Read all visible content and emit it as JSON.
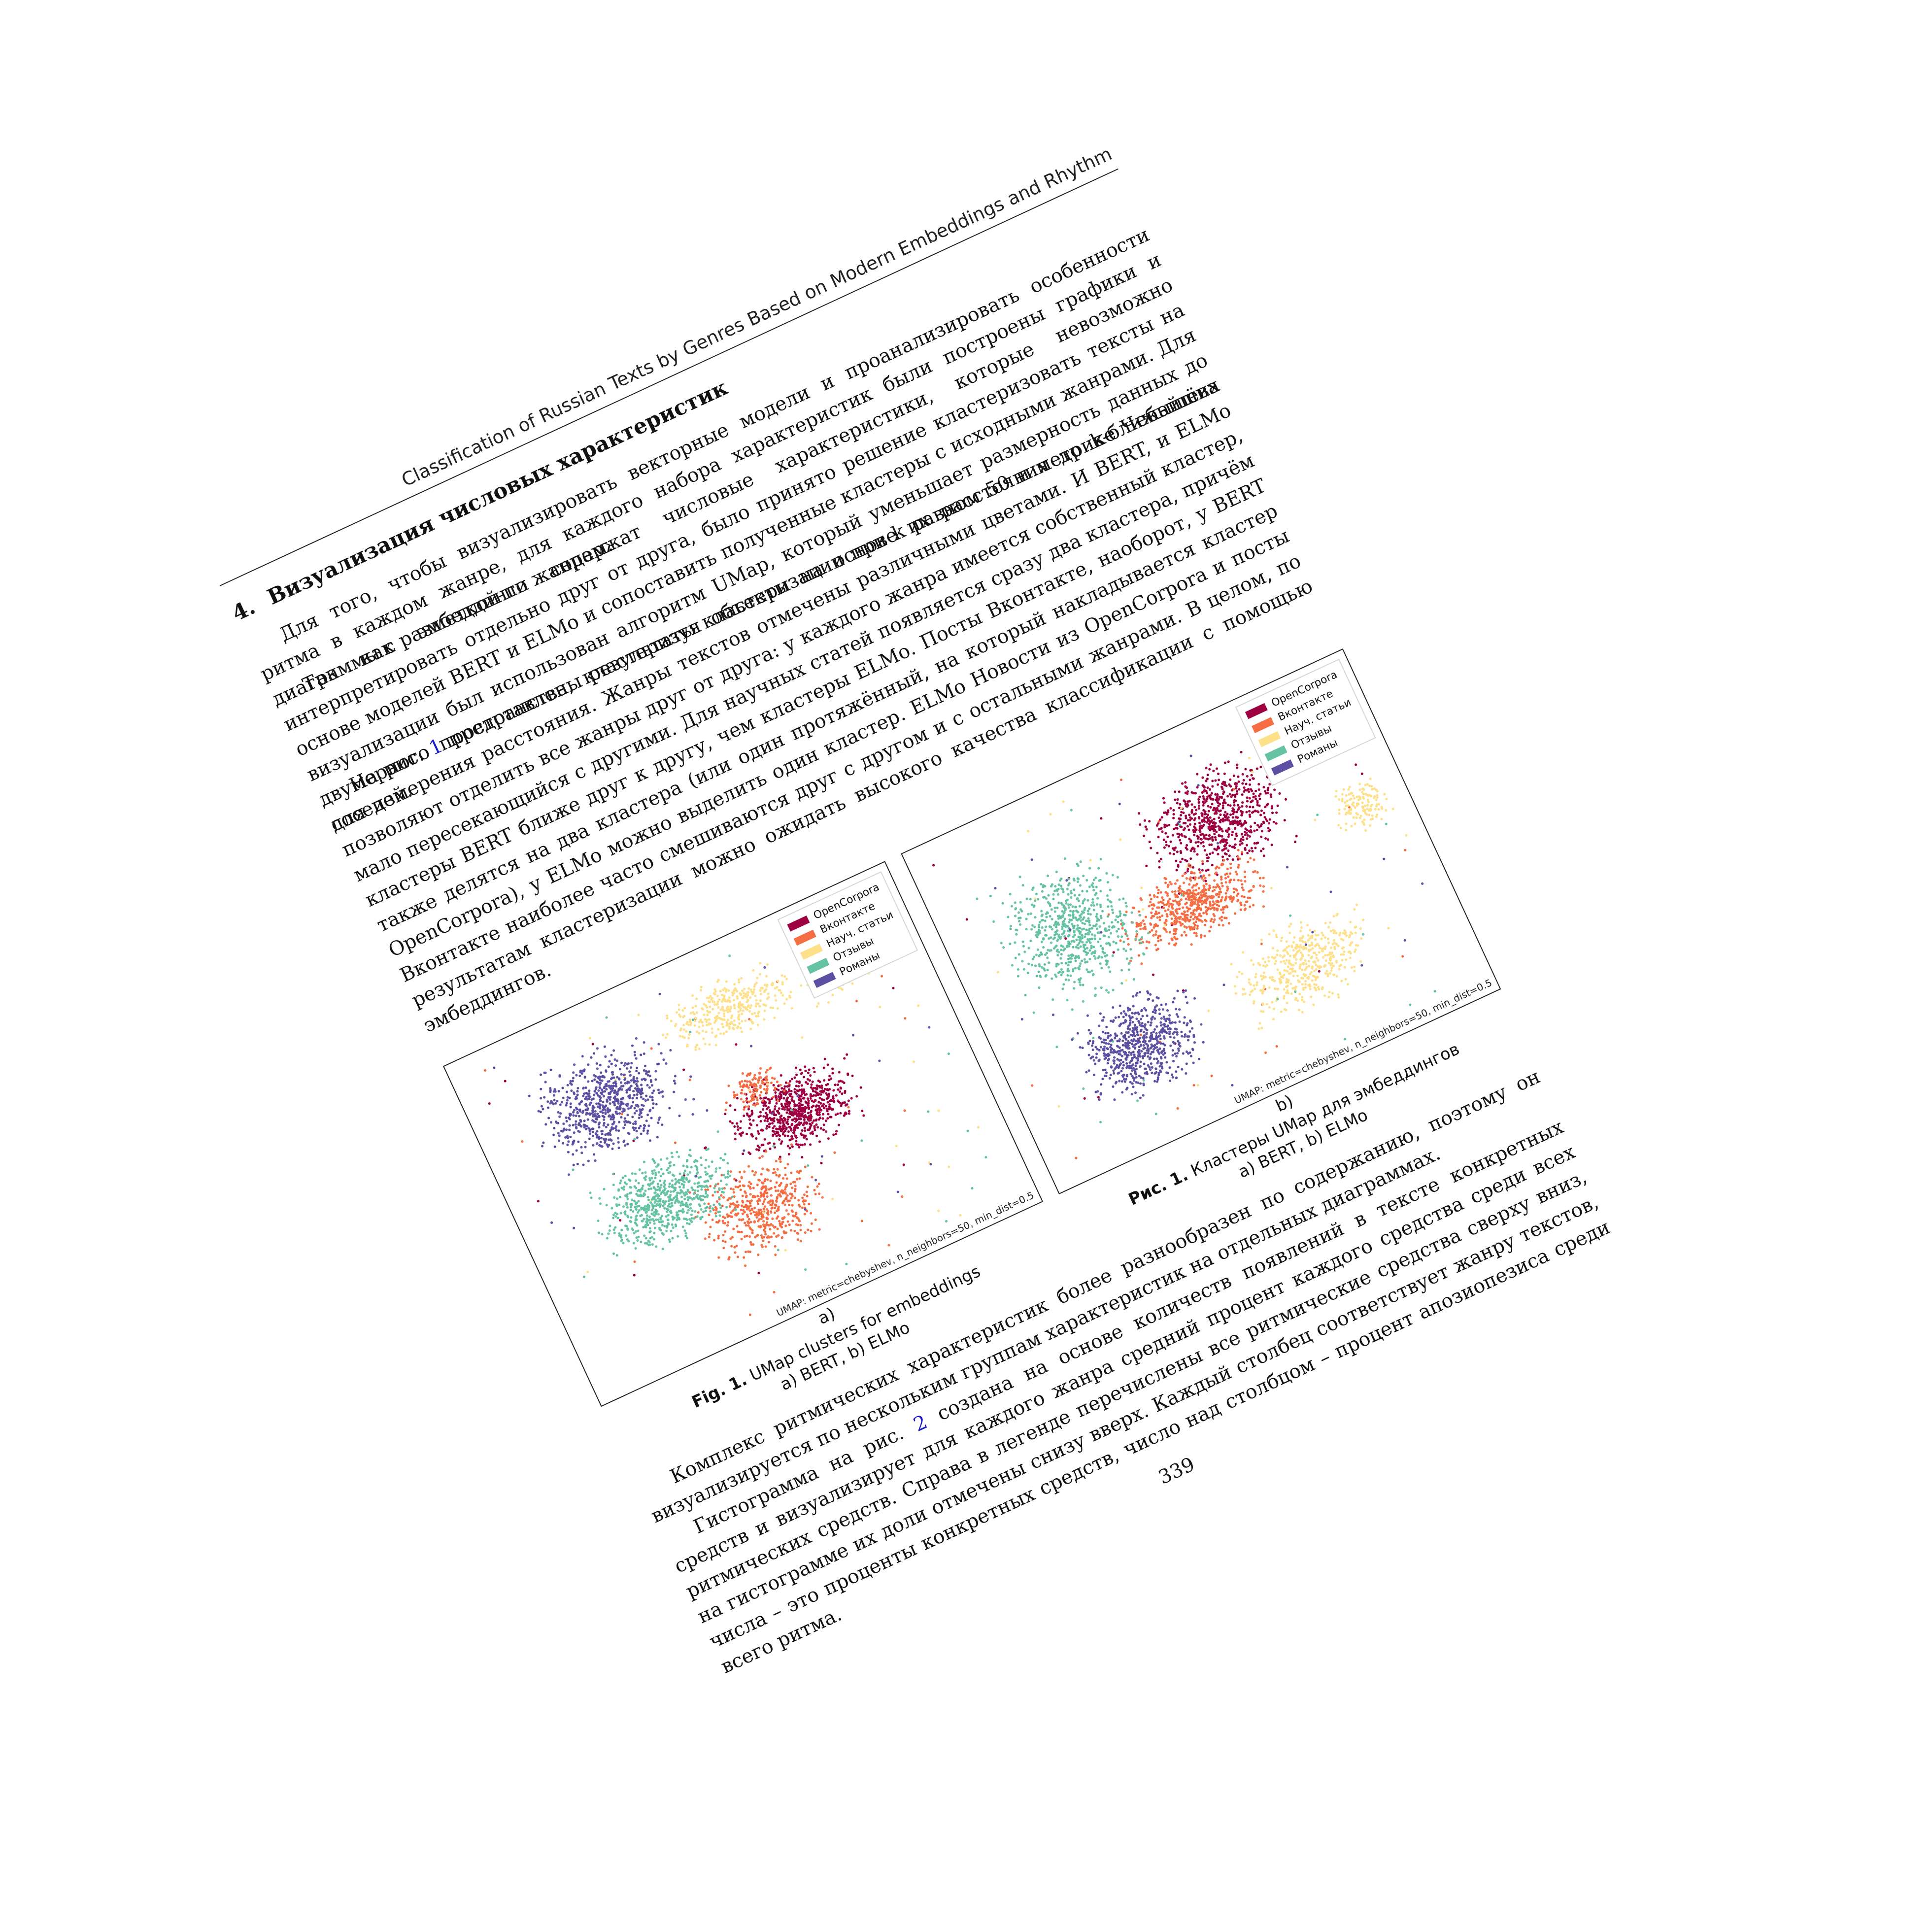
{
  "running_head": "Classification of Russian Texts by Genres Based on Modern Embeddings and Rhythm",
  "section": {
    "number": "4.",
    "title": "Визуализация числовых характеристик"
  },
  "paragraphs": {
    "p1": "Для того, чтобы визуализировать векторные модели и проанализировать особенности ритма в каждом жанре, для каждого набора характеристик были построены графики и диаграммы с разметкой по жанрам.",
    "p2": "Так как эмбеддинги содержат числовые характеристики, которые невозможно интерпретировать отдельно друг от друга, было принято решение кластеризовать тексты на основе моделей BERT и ELMo и сопоставить полученные кластеры с исходными жанрами. Для визуализации был использован алгоритм UMap, который уменьшает размерность данных до двумерного пространства, кластеризуя объекты на основе их расстояния до k-ближайших соседей.",
    "p3_a": "На рис. ",
    "p3_ref": "1",
    "p3_b": " представлены результаты кластеризации при k равном 50 и метрике Чебышёва для измерения расстояния. Жанры текстов отмечены различными цветами. И BERT, и ELMo позволяют отделить все жанры друг от друга: у каждого жанра имеется собственный кластер, мало пересекающийся с другими. Для научных статей появляется сразу два кластера, причём кластеры BERT ближе друг к другу, чем кластеры ELMo. Посты Вконтакте, наоборот, у BERT также делятся на два кластера (или один протяжённый, на который накладывается кластер OpenCorpora), у ELMo можно выделить один кластер. ELMo Новости из OpenCorpora и посты Вконтакте наиболее часто смешиваются друг с другом и с остальными жанрами. В целом, по результатам кластеризации можно ожидать высокого качества классификации с помощью эмбеддингов.",
    "p4": "Комплекс ритмических характеристик более разнообразен по содержанию, поэтому он визуализируется по нескольким группам характеристик на отдельных диаграммах.",
    "p5_a": "Гистограмма на рис. ",
    "p5_ref": "2",
    "p5_b": " создана на основе количеств появлений в тексте конкретных средств и визуализирует для каждого жанра средний процент каждого средства среди всех ритмических средств. Справа в легенде перечислены все ритмические средства сверху вниз, на гистограмме их доли отмечены снизу вверх. Каждый столбец соответствует жанру текстов, числа – это проценты конкретных средств, число над столбцом – процент апозиопезиса среди всего ритма."
  },
  "legend": {
    "items": [
      "OpenCorpora",
      "Вконтакте",
      "Науч. статьи",
      "Отзывы",
      "Романы"
    ],
    "colors": [
      "#9e0142",
      "#f46d43",
      "#fee08b",
      "#66c2a5",
      "#5e4fa2"
    ]
  },
  "chart_data": [
    {
      "type": "scatter",
      "panel": "a",
      "method": "UMAP: metric=chebyshev, n_neighbors=50, min_dist=0.5",
      "series": [
        {
          "name": "OpenCorpora",
          "color": "#9e0142",
          "clusters": [
            {
              "x": 0.62,
              "y": 0.5,
              "rx": 0.12,
              "ry": 0.09,
              "n": 700
            }
          ]
        },
        {
          "name": "Вконтакте",
          "color": "#f46d43",
          "clusters": [
            {
              "x": 0.47,
              "y": 0.7,
              "rx": 0.11,
              "ry": 0.11,
              "n": 500
            },
            {
              "x": 0.56,
              "y": 0.4,
              "rx": 0.06,
              "ry": 0.05,
              "n": 120
            }
          ]
        },
        {
          "name": "Науч. статьи",
          "color": "#fee08b",
          "clusters": [
            {
              "x": 0.58,
              "y": 0.18,
              "rx": 0.12,
              "ry": 0.07,
              "n": 350
            },
            {
              "x": 0.83,
              "y": 0.19,
              "rx": 0.08,
              "ry": 0.08,
              "n": 230
            }
          ]
        },
        {
          "name": "Отзывы",
          "color": "#66c2a5",
          "clusters": [
            {
              "x": 0.3,
              "y": 0.57,
              "rx": 0.13,
              "ry": 0.1,
              "n": 650
            }
          ]
        },
        {
          "name": "Романы",
          "color": "#5e4fa2",
          "clusters": [
            {
              "x": 0.27,
              "y": 0.27,
              "rx": 0.13,
              "ry": 0.12,
              "n": 700
            }
          ]
        }
      ]
    },
    {
      "type": "scatter",
      "panel": "b",
      "method": "UMAP: metric=chebyshev, n_neighbors=50, min_dist=0.5",
      "series": [
        {
          "name": "OpenCorpora",
          "color": "#9e0142",
          "clusters": [
            {
              "x": 0.62,
              "y": 0.27,
              "rx": 0.13,
              "ry": 0.12,
              "n": 700
            }
          ]
        },
        {
          "name": "Вконтакте",
          "color": "#f46d43",
          "clusters": [
            {
              "x": 0.5,
              "y": 0.45,
              "rx": 0.14,
              "ry": 0.08,
              "n": 600
            }
          ]
        },
        {
          "name": "Науч. статьи",
          "color": "#fee08b",
          "clusters": [
            {
              "x": 0.65,
              "y": 0.72,
              "rx": 0.13,
              "ry": 0.1,
              "n": 450
            },
            {
              "x": 0.9,
              "y": 0.4,
              "rx": 0.05,
              "ry": 0.06,
              "n": 130
            }
          ]
        },
        {
          "name": "Отзывы",
          "color": "#66c2a5",
          "clusters": [
            {
              "x": 0.25,
              "y": 0.38,
              "rx": 0.12,
              "ry": 0.16,
              "n": 650
            }
          ]
        },
        {
          "name": "Романы",
          "color": "#5e4fa2",
          "clusters": [
            {
              "x": 0.28,
              "y": 0.73,
              "rx": 0.11,
              "ry": 0.11,
              "n": 650
            }
          ]
        }
      ]
    }
  ],
  "subfigure_labels": [
    "a)",
    "b)"
  ],
  "caption": {
    "en_label": "Fig. 1.",
    "en_text": "UMap clusters for embeddings",
    "en_sub": "a) BERT, b) ELMo",
    "ru_label": "Рис. 1.",
    "ru_text": "Кластеры UMap для эмбеддингов",
    "ru_sub": "a) BERT, b) ELMo"
  },
  "page_number": "339"
}
